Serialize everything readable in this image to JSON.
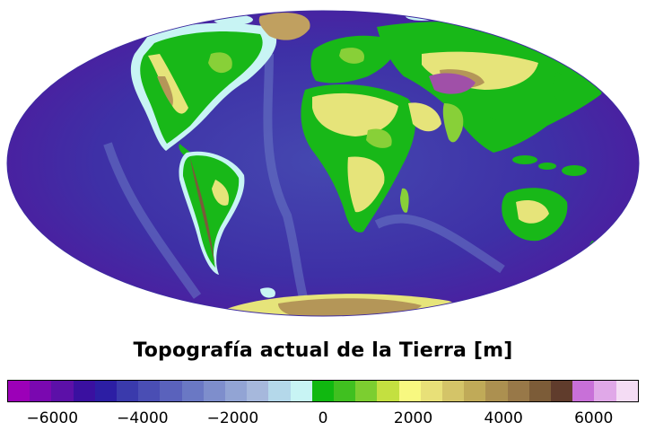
{
  "title": "Topografía actual de la Tierra [m]",
  "projection": "Mollweide",
  "colorbar": {
    "min": -7000,
    "max": 7000,
    "ticks": [
      "−6000",
      "−4000",
      "−2000",
      "0",
      "2000",
      "4000",
      "6000"
    ],
    "tick_values": [
      -6000,
      -4000,
      -2000,
      0,
      2000,
      4000,
      6000
    ],
    "colors": [
      "#9c00b8",
      "#7a08b0",
      "#5c10a8",
      "#3a10a0",
      "#2c1ea4",
      "#3a3aac",
      "#4a4eb4",
      "#5a62bc",
      "#6a78c4",
      "#7e8ecc",
      "#92a4d4",
      "#a6b8dc",
      "#b4d8ea",
      "#c8f4f4",
      "#10b810",
      "#40c020",
      "#7cce30",
      "#c4e040",
      "#f8f880",
      "#e8e078",
      "#d4c468",
      "#c0aa58",
      "#ac9050",
      "#987848",
      "#7c5c38",
      "#603c2c",
      "#c870d8",
      "#e0a8e8",
      "#f4dcf4"
    ]
  },
  "palette": {
    "ocean_deep": "#3d1aa0",
    "ocean_mid": "#4a4eb4",
    "ocean_shelf": "#7e8ecc",
    "coast_shallow": "#b8ecf2",
    "lowland": "#18b818",
    "plains": "#88d038",
    "upland": "#e6e47a",
    "highland": "#b49658",
    "mountain": "#7a5a3a",
    "plateau": "#a050a8",
    "ice": "#c0a060"
  }
}
